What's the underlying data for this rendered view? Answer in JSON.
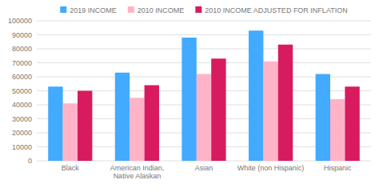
{
  "chart_data": {
    "type": "bar",
    "categories": [
      "Black",
      "American Indian,\nNative Alaskan",
      "Asian",
      "White (non Hispanic)",
      "Hispanic"
    ],
    "series": [
      {
        "name": "2019 INCOME",
        "color": "#42AAFF",
        "values": [
          53000,
          63000,
          88000,
          93000,
          62000
        ]
      },
      {
        "name": "2010 INCOME",
        "color": "#FFB3C6",
        "values": [
          41000,
          45000,
          62000,
          71000,
          44000
        ]
      },
      {
        "name": "2010 INCOME ADJUSTED FOR INFLATION",
        "color": "#D81B5E",
        "values": [
          50000,
          54000,
          73000,
          83000,
          53000
        ]
      }
    ],
    "ylim": [
      0,
      100000
    ],
    "yticks": [
      0,
      10000,
      20000,
      30000,
      40000,
      50000,
      60000,
      70000,
      80000,
      90000,
      100000
    ],
    "grid": true,
    "legend": "top"
  }
}
